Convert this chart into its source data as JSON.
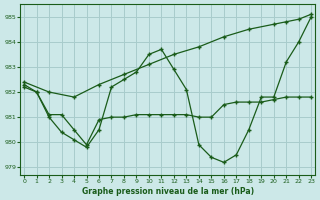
{
  "xlabel": "Graphe pression niveau de la mer (hPa)",
  "bg_color": "#cce8e8",
  "grid_color": "#a8cccc",
  "line_color": "#1a5c1a",
  "ylim": [
    978.7,
    985.5
  ],
  "xlim": [
    -0.3,
    23.3
  ],
  "yticks": [
    979,
    980,
    981,
    982,
    983,
    984,
    985
  ],
  "xticks": [
    0,
    1,
    2,
    3,
    4,
    5,
    6,
    7,
    8,
    9,
    10,
    11,
    12,
    13,
    14,
    15,
    16,
    17,
    18,
    19,
    20,
    21,
    22,
    23
  ],
  "line1_x": [
    0,
    2,
    4,
    6,
    8,
    10,
    12,
    14,
    16,
    18,
    20,
    21,
    22,
    23
  ],
  "line1_y": [
    982.4,
    982.0,
    981.8,
    982.3,
    982.7,
    983.1,
    983.5,
    983.8,
    984.2,
    984.5,
    984.7,
    984.8,
    984.9,
    985.1
  ],
  "line2_x": [
    0,
    1,
    2,
    3,
    4,
    5,
    6,
    7,
    8,
    9,
    10,
    11,
    12,
    13,
    14,
    15,
    16,
    17,
    18,
    19,
    20,
    21,
    22,
    23
  ],
  "line2_y": [
    982.3,
    982.0,
    981.1,
    981.1,
    980.5,
    979.9,
    980.9,
    981.0,
    981.0,
    981.1,
    981.1,
    981.1,
    981.1,
    981.1,
    981.0,
    981.0,
    981.5,
    981.6,
    981.6,
    981.6,
    981.7,
    981.8,
    981.8,
    981.8
  ],
  "line3_x": [
    0,
    1,
    2,
    3,
    4,
    5,
    6,
    7,
    8,
    9,
    10,
    11,
    12,
    13,
    14,
    15,
    16,
    17,
    18,
    19,
    20,
    21,
    22,
    23
  ],
  "line3_y": [
    982.2,
    982.0,
    981.0,
    980.4,
    980.1,
    979.8,
    980.5,
    982.2,
    982.5,
    982.8,
    983.5,
    983.7,
    982.9,
    982.1,
    979.9,
    979.4,
    979.2,
    979.5,
    980.5,
    981.8,
    981.8,
    983.2,
    984.0,
    985.0
  ]
}
